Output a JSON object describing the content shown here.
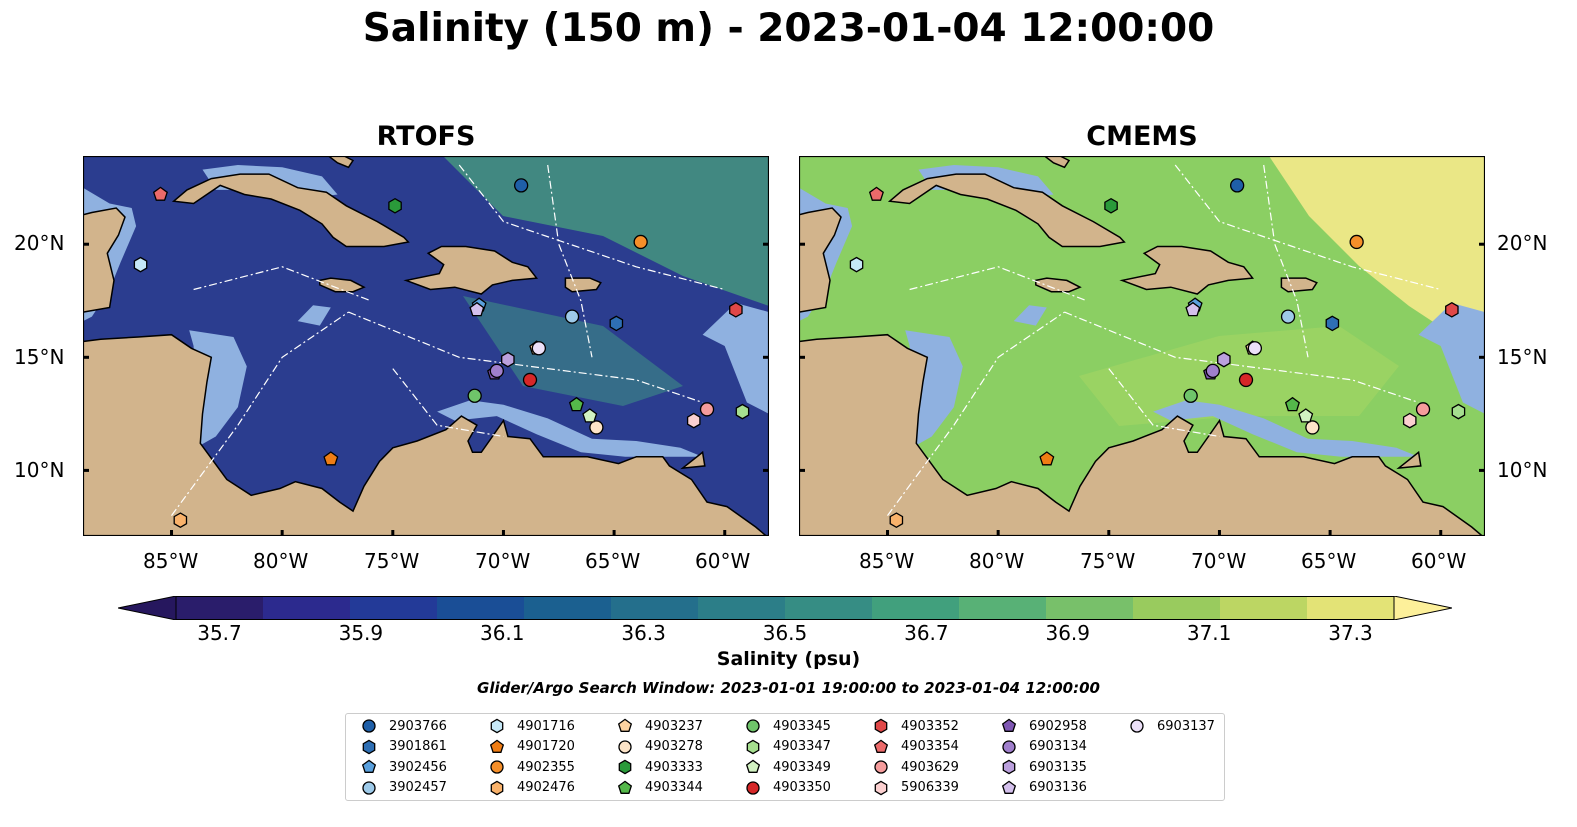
{
  "title": "Salinity (150 m) - 2023-01-04 12:00:00",
  "panels": [
    {
      "id": "rtofs",
      "title": "RTOFS",
      "ocean_color": "#2b3d8f"
    },
    {
      "id": "cmems",
      "title": "CMEMS",
      "ocean_color": "#8bcf63"
    }
  ],
  "lat_ticks": [
    "20°N",
    "15°N",
    "10°N"
  ],
  "lon_ticks": [
    "85°W",
    "80°W",
    "75°W",
    "70°W",
    "65°W",
    "60°W"
  ],
  "colorbar": {
    "label": "Salinity (psu)",
    "ticks": [
      "35.7",
      "35.9",
      "36.1",
      "36.3",
      "36.5",
      "36.7",
      "36.9",
      "37.1",
      "37.3"
    ],
    "colors": [
      "#2a1d6b",
      "#2c2a8e",
      "#233a98",
      "#1a4e96",
      "#1b6090",
      "#246f8c",
      "#2c7e88",
      "#368d84",
      "#41a07d",
      "#58b176",
      "#78c06a",
      "#99cb5e",
      "#bcd663",
      "#e3e376"
    ],
    "under_color": "#26175e",
    "over_color": "#fdf09a"
  },
  "search_window": "Glider/Argo Search Window: 2023-01-01 19:00:00 to 2023-01-04 12:00:00",
  "legend": [
    {
      "id": "2903766",
      "marker": "circle",
      "color": "#1f5fa8"
    },
    {
      "id": "3901861",
      "marker": "hexagon",
      "color": "#2e6fb4"
    },
    {
      "id": "3902456",
      "marker": "pentagon",
      "color": "#5aa0dd"
    },
    {
      "id": "3902457",
      "marker": "circle",
      "color": "#9ecae9"
    },
    {
      "id": "4901716",
      "marker": "hexagon",
      "color": "#c6e8f7"
    },
    {
      "id": "4901720",
      "marker": "pentagon",
      "color": "#f07d14"
    },
    {
      "id": "4902355",
      "marker": "circle",
      "color": "#f58f2a"
    },
    {
      "id": "4902476",
      "marker": "hexagon",
      "color": "#f9b26b"
    },
    {
      "id": "4903237",
      "marker": "pentagon",
      "color": "#fcd2a0"
    },
    {
      "id": "4903278",
      "marker": "circle",
      "color": "#fde4c8"
    },
    {
      "id": "4903333",
      "marker": "hexagon",
      "color": "#2a9a3a"
    },
    {
      "id": "4903344",
      "marker": "pentagon",
      "color": "#54b84a"
    },
    {
      "id": "4903345",
      "marker": "circle",
      "color": "#6fc46a"
    },
    {
      "id": "4903347",
      "marker": "hexagon",
      "color": "#a6df8f"
    },
    {
      "id": "4903349",
      "marker": "pentagon",
      "color": "#d2f2c2"
    },
    {
      "id": "4903350",
      "marker": "circle",
      "color": "#d62728"
    },
    {
      "id": "4903352",
      "marker": "hexagon",
      "color": "#e04848"
    },
    {
      "id": "4903354",
      "marker": "pentagon",
      "color": "#ec6a6a"
    },
    {
      "id": "4903629",
      "marker": "circle",
      "color": "#f59c9c"
    },
    {
      "id": "5906339",
      "marker": "hexagon",
      "color": "#fbd0d0"
    },
    {
      "id": "6902958",
      "marker": "pentagon",
      "color": "#7f57b3"
    },
    {
      "id": "6903134",
      "marker": "circle",
      "color": "#a07fcc"
    },
    {
      "id": "6903135",
      "marker": "hexagon",
      "color": "#bba0dd"
    },
    {
      "id": "6903136",
      "marker": "pentagon",
      "color": "#d4c0ec"
    },
    {
      "id": "6903137",
      "marker": "circle",
      "color": "#ece0f8"
    }
  ],
  "floats": [
    {
      "id": "2903766",
      "lon": -69.2,
      "lat": 22.6
    },
    {
      "id": "3901861",
      "lon": -64.9,
      "lat": 16.5
    },
    {
      "id": "3902456",
      "lon": -71.1,
      "lat": 17.3
    },
    {
      "id": "3902457",
      "lon": -66.9,
      "lat": 16.8
    },
    {
      "id": "4901716",
      "lon": -86.4,
      "lat": 19.1
    },
    {
      "id": "4901720",
      "lon": -77.8,
      "lat": 10.5
    },
    {
      "id": "4902355",
      "lon": -63.8,
      "lat": 20.1
    },
    {
      "id": "4902476",
      "lon": -84.6,
      "lat": 7.8
    },
    {
      "id": "4903237",
      "lon": -68.5,
      "lat": 15.4
    },
    {
      "id": "4903278",
      "lon": -65.8,
      "lat": 11.9
    },
    {
      "id": "4903333",
      "lon": -74.9,
      "lat": 21.7
    },
    {
      "id": "4903344",
      "lon": -66.7,
      "lat": 12.9
    },
    {
      "id": "4903345",
      "lon": -71.3,
      "lat": 13.3
    },
    {
      "id": "4903347",
      "lon": -59.2,
      "lat": 12.6
    },
    {
      "id": "4903349",
      "lon": -66.1,
      "lat": 12.4
    },
    {
      "id": "4903350",
      "lon": -68.8,
      "lat": 14.0
    },
    {
      "id": "4903352",
      "lon": -59.5,
      "lat": 17.1
    },
    {
      "id": "4903354",
      "lon": -85.5,
      "lat": 22.2
    },
    {
      "id": "4903629",
      "lon": -60.8,
      "lat": 12.7
    },
    {
      "id": "5906339",
      "lon": -61.4,
      "lat": 12.2
    },
    {
      "id": "6902958",
      "lon": -70.4,
      "lat": 14.3
    },
    {
      "id": "6903134",
      "lon": -70.3,
      "lat": 14.4
    },
    {
      "id": "6903135",
      "lon": -69.8,
      "lat": 14.9
    },
    {
      "id": "6903136",
      "lon": -71.2,
      "lat": 17.1
    },
    {
      "id": "6903137",
      "lon": -68.4,
      "lat": 15.4
    }
  ]
}
